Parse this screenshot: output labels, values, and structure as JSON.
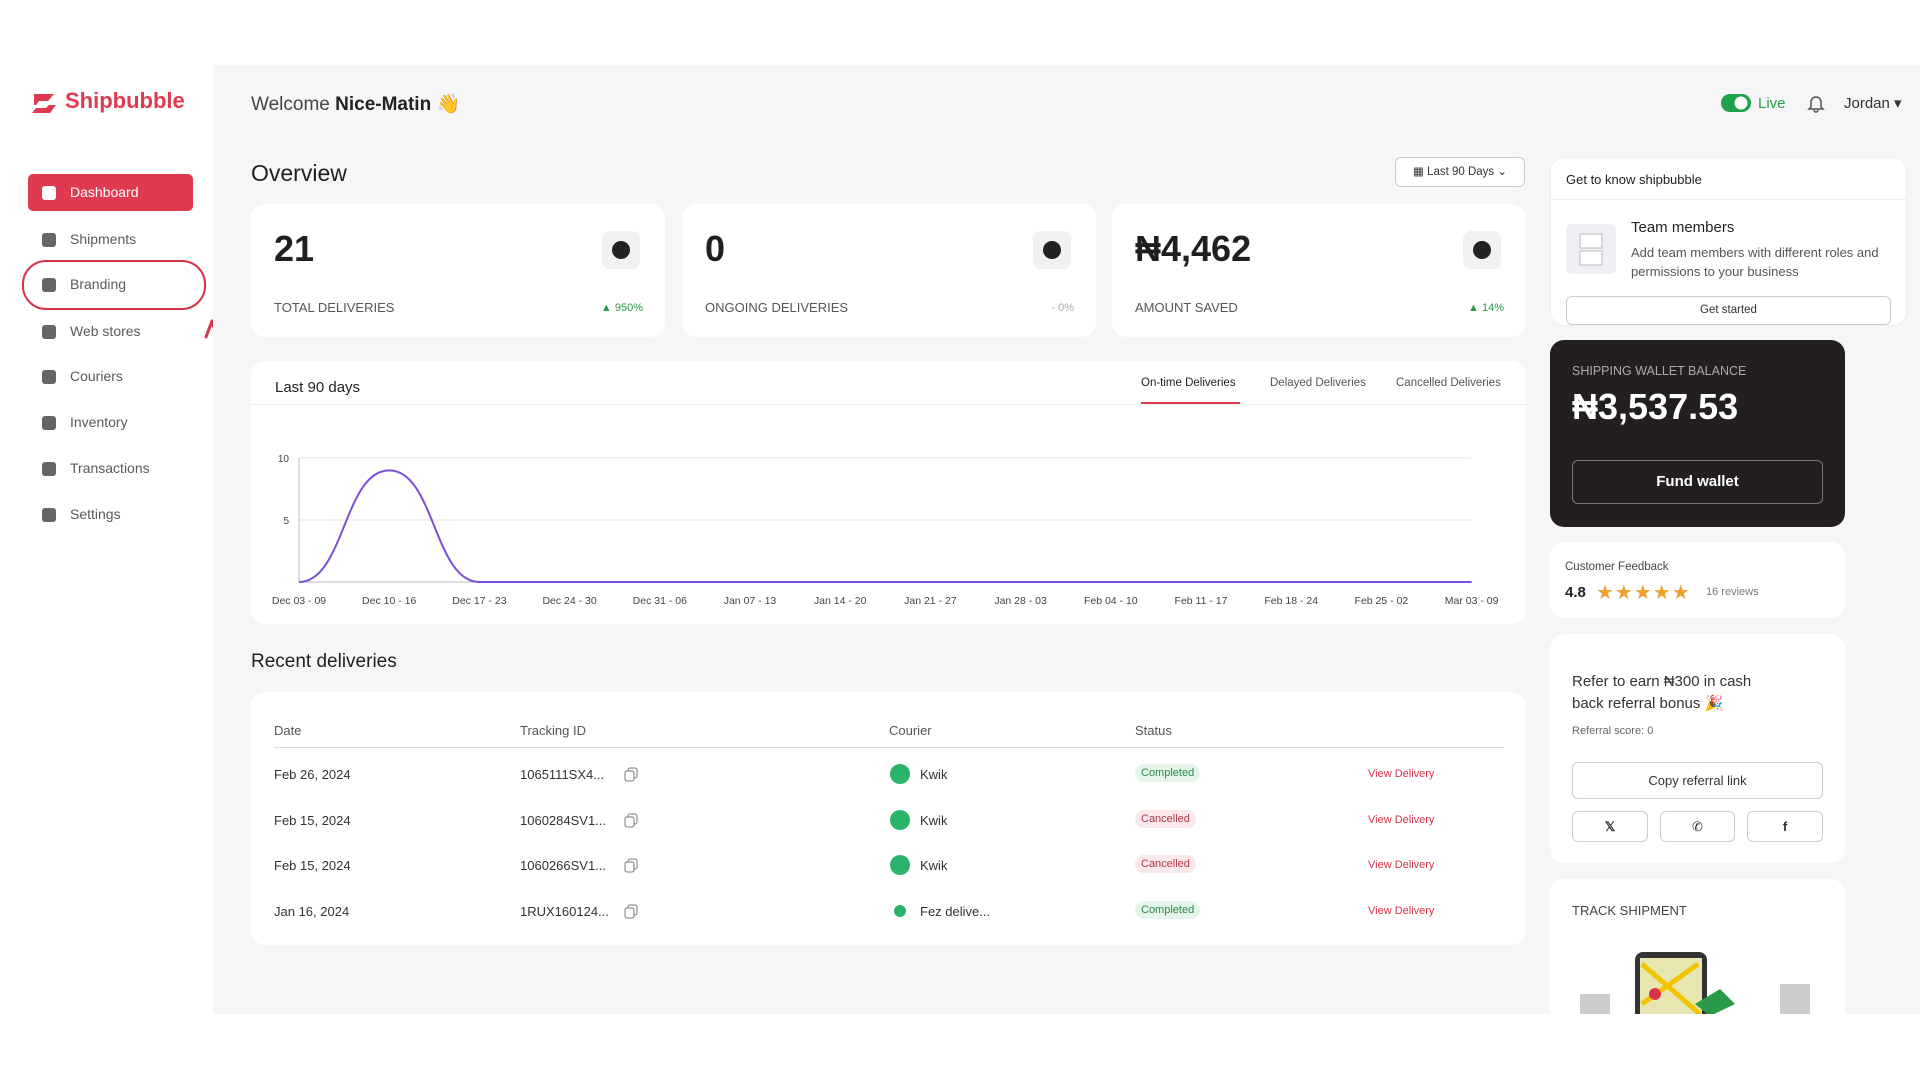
{
  "brand": "Shipbubble",
  "sidebar": {
    "items": [
      "Dashboard",
      "Shipments",
      "Branding",
      "Web stores",
      "Couriers",
      "Inventory",
      "Transactions",
      "Settings"
    ]
  },
  "header": {
    "welcome": "Welcome",
    "org": "Nice-Matin",
    "wave": "👋",
    "live": "Live",
    "user": "Jordan"
  },
  "overview": {
    "title": "Overview",
    "range": "Last 90 Days",
    "cards": [
      {
        "value": "21",
        "label": "TOTAL DELIVERIES",
        "change": "950%"
      },
      {
        "value": "0",
        "label": "ONGOING DELIVERIES",
        "change": "0%"
      },
      {
        "value": "₦4,462",
        "label": "AMOUNT SAVED",
        "change": "14%"
      }
    ]
  },
  "chart": {
    "title": "Last 90 days",
    "tabs": [
      "On-time Deliveries",
      "Delayed Deliveries",
      "Cancelled Deliveries"
    ],
    "categories": [
      "Dec 03 - 09",
      "Dec 10 - 16",
      "Dec 17 - 23",
      "Dec 24 - 30",
      "Dec 31 - 06",
      "Jan 07 - 13",
      "Jan 14 - 20",
      "Jan 21 - 27",
      "Jan 28 - 03",
      "Feb 04 - 10",
      "Feb 11 - 17",
      "Feb 18 - 24",
      "Feb 25 - 02",
      "Mar 03 - 09"
    ],
    "values": [
      0,
      9,
      0,
      0,
      0,
      0,
      0,
      0,
      0,
      0,
      0,
      0,
      0,
      0
    ],
    "ylim": [
      0,
      10
    ],
    "yticks": [
      5,
      10
    ],
    "color": "#7b4fd6"
  },
  "recent": {
    "title": "Recent deliveries",
    "headers": [
      "Date",
      "Tracking ID",
      "Courier",
      "Status"
    ],
    "rows": [
      [
        "Feb 26, 2024",
        "1065111SX4...",
        "Kwik",
        "Completed",
        "View Delivery"
      ],
      [
        "Feb 15, 2024",
        "1060284SV1...",
        "Kwik",
        "Cancelled",
        "View Delivery"
      ],
      [
        "Feb 15, 2024",
        "1060266SV1...",
        "Kwik",
        "Cancelled",
        "View Delivery"
      ],
      [
        "Jan 16, 2024",
        "1RUX160124...",
        "Fez delive...",
        "Completed",
        "View Delivery"
      ]
    ]
  },
  "get_to_know": {
    "title": "Get to know shipbubble",
    "item_title": "Team members",
    "item_desc": "Add team members with different roles and permissions to your business",
    "button": "Get started"
  },
  "wallet": {
    "label": "SHIPPING WALLET BALANCE",
    "amount": "₦3,537.53",
    "button": "Fund wallet"
  },
  "feedback": {
    "title": "Customer Feedback",
    "rating": "4.8",
    "reviews": "16 reviews"
  },
  "referral": {
    "text": "Refer to earn ₦300 in cash back referral bonus 🎉",
    "score": "Referral score: 0",
    "button": "Copy referral link"
  },
  "track": {
    "title": "TRACK SHIPMENT"
  }
}
